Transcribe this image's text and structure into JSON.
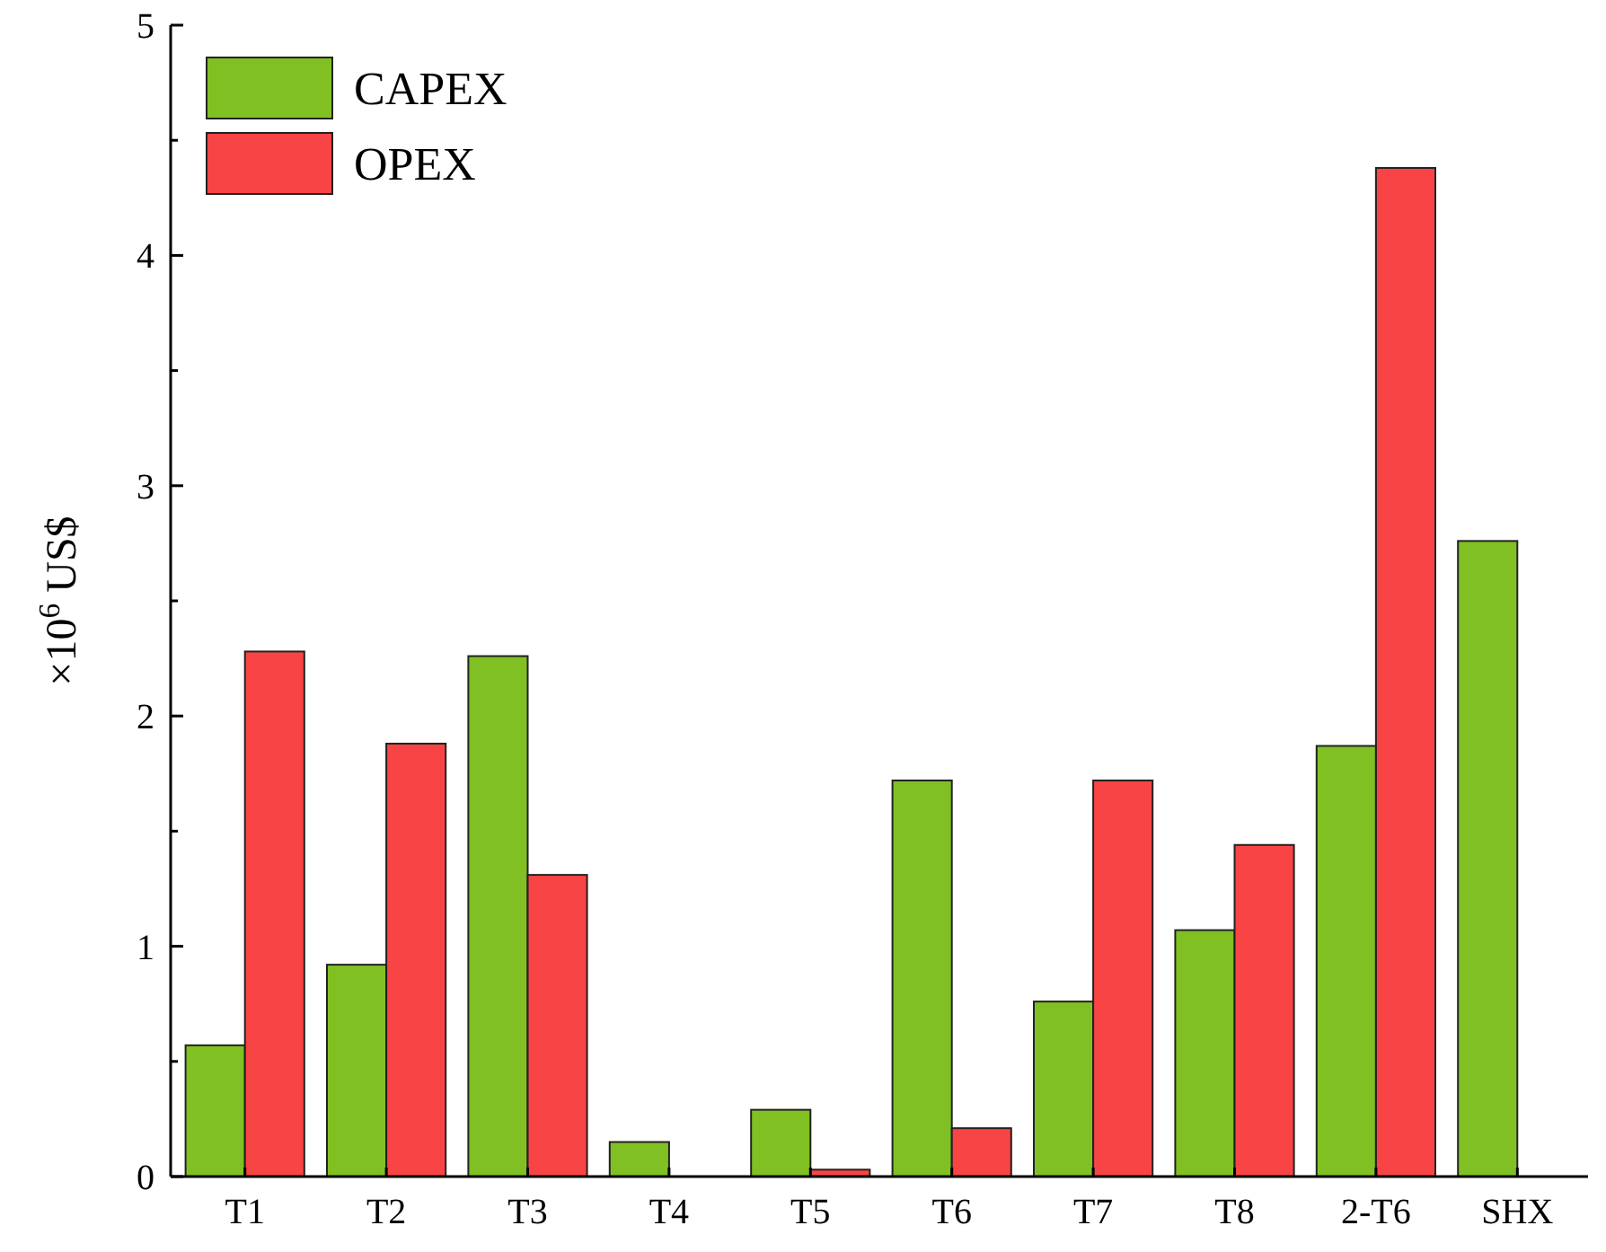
{
  "chart_data": {
    "type": "bar",
    "ylabel": "×10$^{6}$ US$",
    "categories": [
      "T1",
      "T2",
      "T3",
      "T4",
      "T5",
      "T6",
      "T7",
      "T8",
      "2-T6",
      "SHX"
    ],
    "series": [
      {
        "name": "CAPEX",
        "color": "#80c022",
        "values": [
          0.57,
          0.92,
          2.26,
          0.15,
          0.29,
          1.72,
          0.76,
          1.07,
          1.87,
          2.76
        ]
      },
      {
        "name": "OPEX",
        "color": "#f84444",
        "values": [
          2.28,
          1.88,
          1.31,
          0,
          0.03,
          0.21,
          1.72,
          1.44,
          4.38,
          0
        ]
      }
    ],
    "ylim": [
      0,
      5
    ],
    "yticks": [
      0,
      {
        "value": 0.5,
        "label": null
      },
      1,
      {
        "value": 1.5,
        "label": null
      },
      2,
      {
        "value": 2.5,
        "label": null
      },
      3,
      {
        "value": 3.5,
        "label": null
      },
      4,
      {
        "value": 4.5,
        "label": null
      },
      5
    ],
    "legend": "top left"
  }
}
